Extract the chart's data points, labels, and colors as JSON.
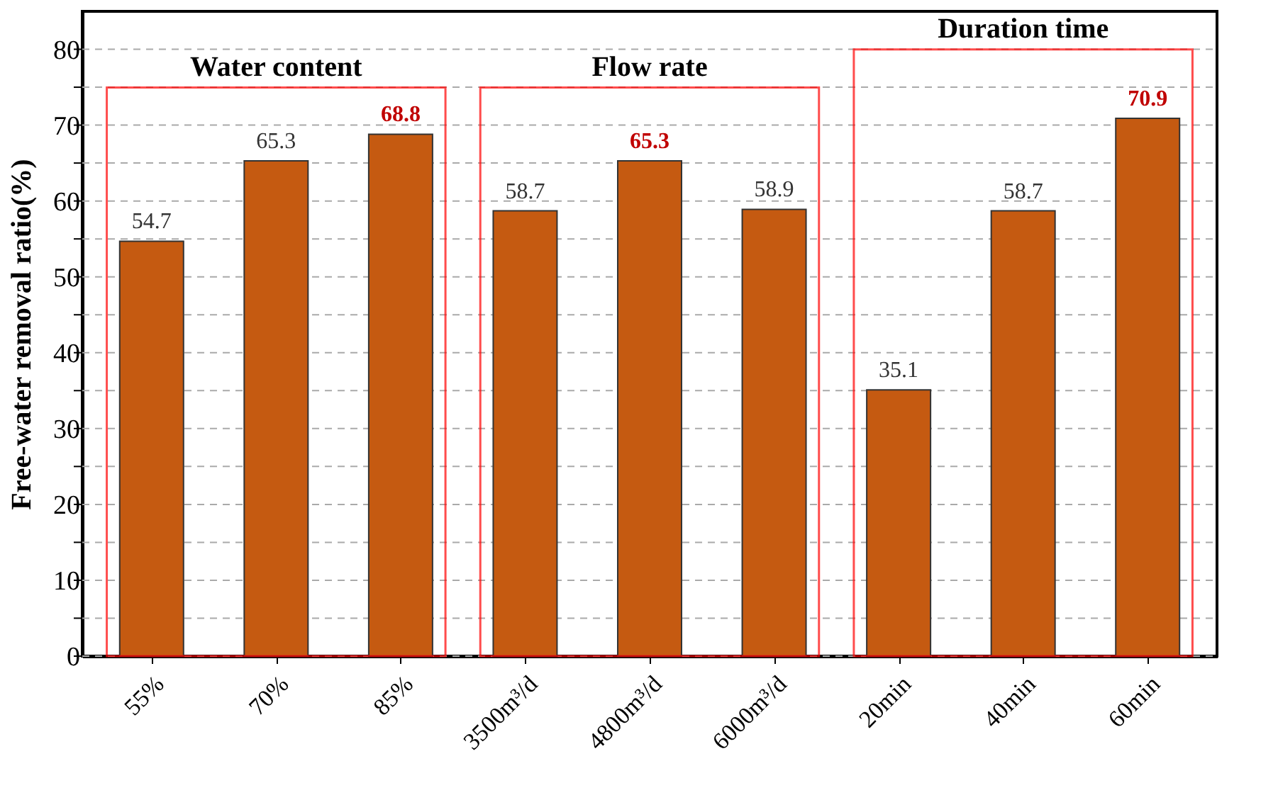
{
  "chart_data": {
    "type": "bar",
    "ylabel": "Free-water removal ratio(%)",
    "categories": [
      "55%",
      "70%",
      "85%",
      "3500m³/d",
      "4800m³/d",
      "6000m³/d",
      "20min",
      "40min",
      "60min"
    ],
    "values": [
      54.7,
      65.3,
      68.8,
      58.7,
      65.3,
      58.9,
      35.1,
      58.7,
      70.9
    ],
    "color": "#c55a11",
    "data_labels": true,
    "ylim": [
      0,
      85
    ],
    "yticks": [
      0,
      {
        "value": 5,
        "label": null
      },
      10,
      {
        "value": 15,
        "label": null
      },
      20,
      {
        "value": 25,
        "label": null
      },
      30,
      {
        "value": 35,
        "label": null
      },
      40,
      {
        "value": 45,
        "label": null
      },
      50,
      {
        "value": 55,
        "label": null
      },
      60,
      {
        "value": 65,
        "label": null
      },
      70,
      {
        "value": 75,
        "label": null
      },
      80
    ],
    "grid": "y",
    "annotations": [
      "Water content",
      "Flow rate",
      "Duration time"
    ]
  }
}
